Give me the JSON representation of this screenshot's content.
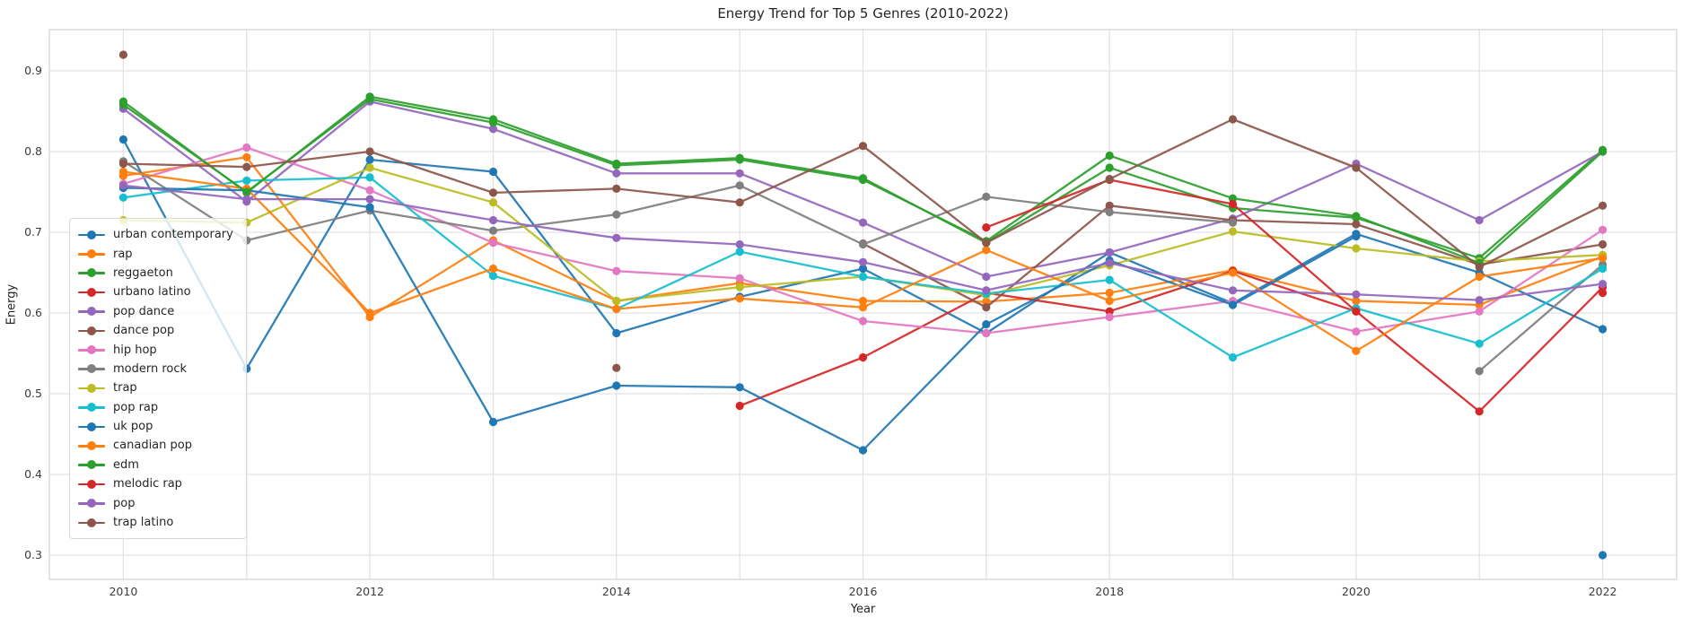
{
  "chart_data": {
    "type": "line",
    "title": "Energy Trend for Top 5 Genres (2010-2022)",
    "xlabel": "Year",
    "ylabel": "Energy",
    "x": [
      2010,
      2011,
      2012,
      2013,
      2014,
      2015,
      2016,
      2017,
      2018,
      2019,
      2020,
      2021,
      2022
    ],
    "x_labeled_ticks": [
      2010,
      2012,
      2014,
      2016,
      2018,
      2020,
      2022
    ],
    "y_ticks": [
      0.3,
      0.4,
      0.5,
      0.6,
      0.7,
      0.8,
      0.9
    ],
    "xlim": [
      2009.4,
      2022.6
    ],
    "ylim": [
      0.27,
      0.9511
    ],
    "grid": true,
    "legend_position": "upper-left-inside",
    "colors": {
      "grid": "#e2e2e2",
      "spine": "#d5d5d5",
      "tick_text": "#3b3b3b",
      "title_text": "#262626"
    },
    "series": [
      {
        "name": "urban contemporary",
        "color": "#1f77b4",
        "values": [
          0.815,
          0.531,
          0.79,
          0.775,
          0.575,
          0.62,
          0.655,
          0.575,
          0.675,
          0.612,
          0.698,
          0.65,
          0.58
        ]
      },
      {
        "name": "rap",
        "color": "#ff7f0e",
        "values": [
          0.77,
          0.793,
          0.595,
          0.69,
          0.615,
          0.637,
          0.615,
          0.614,
          0.625,
          0.653,
          0.615,
          0.61,
          0.67
        ]
      },
      {
        "name": "reggaeton",
        "color": "#2ca02c",
        "values": [
          0.862,
          0.749,
          0.868,
          0.84,
          0.785,
          0.792,
          0.767,
          0.687,
          0.78,
          0.73,
          0.718,
          0.668,
          0.802
        ]
      },
      {
        "name": "urbano latino",
        "color": "#d62728",
        "values": [
          null,
          null,
          null,
          null,
          null,
          0.485,
          0.545,
          0.625,
          0.602,
          0.652,
          0.602,
          0.478,
          0.632
        ]
      },
      {
        "name": "pop dance",
        "color": "#9467bd",
        "values": [
          0.853,
          0.738,
          0.862,
          0.828,
          0.773,
          0.773,
          0.712,
          0.645,
          0.675,
          0.717,
          0.785,
          0.715,
          0.8
        ]
      },
      {
        "name": "dance pop",
        "color": "#8c564b",
        "values": [
          0.92,
          null,
          null,
          null,
          0.532,
          null,
          0.686,
          0.607,
          0.733,
          0.715,
          0.71,
          0.66,
          0.685
        ]
      },
      {
        "name": "hip hop",
        "color": "#e377c2",
        "values": [
          0.76,
          0.805,
          0.752,
          0.687,
          0.652,
          0.643,
          0.59,
          0.575,
          0.595,
          0.615,
          0.577,
          0.602,
          0.703
        ]
      },
      {
        "name": "modern rock",
        "color": "#7f7f7f",
        "values": [
          0.788,
          0.69,
          0.727,
          0.702,
          0.722,
          0.758,
          0.685,
          0.744,
          0.725,
          0.712,
          null,
          0.528,
          0.66
        ]
      },
      {
        "name": "trap",
        "color": "#bcbd22",
        "values": [
          0.715,
          0.712,
          0.78,
          0.737,
          0.615,
          0.632,
          0.645,
          0.622,
          0.659,
          0.701,
          0.68,
          0.664,
          0.672
        ]
      },
      {
        "name": "pop rap",
        "color": "#17becf",
        "values": [
          0.743,
          0.764,
          0.768,
          0.646,
          0.605,
          0.676,
          0.645,
          0.624,
          0.641,
          0.545,
          0.606,
          0.562,
          0.655
        ]
      },
      {
        "name": "uk pop",
        "color": "#1f77b4",
        "values": [
          0.755,
          0.752,
          0.731,
          0.465,
          0.51,
          0.508,
          0.43,
          0.586,
          0.665,
          0.61,
          0.695,
          null,
          0.3
        ]
      },
      {
        "name": "canadian pop",
        "color": "#ff7f0e",
        "values": [
          0.775,
          0.754,
          0.6,
          0.655,
          0.605,
          0.618,
          0.607,
          0.678,
          0.615,
          0.65,
          0.553,
          0.645,
          0.668
        ]
      },
      {
        "name": "edm",
        "color": "#2ca02c",
        "values": [
          0.858,
          0.75,
          0.865,
          0.836,
          0.783,
          0.79,
          0.765,
          0.689,
          0.795,
          0.742,
          0.72,
          0.662,
          0.8
        ]
      },
      {
        "name": "melodic rap",
        "color": "#d62728",
        "values": [
          null,
          null,
          null,
          null,
          null,
          null,
          null,
          0.706,
          0.765,
          0.735,
          0.602,
          null,
          0.625
        ]
      },
      {
        "name": "pop",
        "color": "#9467bd",
        "values": [
          0.758,
          0.741,
          0.741,
          0.715,
          0.693,
          0.685,
          0.663,
          0.628,
          0.662,
          0.628,
          0.623,
          0.616,
          0.636
        ]
      },
      {
        "name": "trap latino",
        "color": "#8c564b",
        "values": [
          0.785,
          0.781,
          0.8,
          0.749,
          0.754,
          0.737,
          0.807,
          0.687,
          0.766,
          0.84,
          0.78,
          0.657,
          0.733
        ]
      }
    ]
  }
}
